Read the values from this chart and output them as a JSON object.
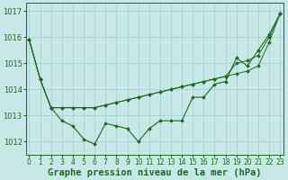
{
  "xlabel": "Graphe pression niveau de la mer (hPa)",
  "background_color": "#c8e8e8",
  "grid_color": "#9fcfcf",
  "line_color": "#1a6b1a",
  "marker_color": "#1a6b1a",
  "ylim": [
    1011.5,
    1017.3
  ],
  "yticks": [
    1012,
    1013,
    1014,
    1015,
    1016,
    1017
  ],
  "xlim": [
    -0.3,
    23.3
  ],
  "xticks": [
    0,
    1,
    2,
    3,
    4,
    5,
    6,
    7,
    8,
    9,
    10,
    11,
    12,
    13,
    14,
    15,
    16,
    17,
    18,
    19,
    20,
    21,
    22,
    23
  ],
  "series1": [
    1015.9,
    1014.4,
    1013.3,
    1012.8,
    1012.6,
    1012.1,
    1011.9,
    1012.7,
    1012.6,
    1012.5,
    1012.0,
    1012.5,
    1012.8,
    1012.8,
    1012.8,
    1013.7,
    1013.7,
    1014.2,
    1014.3,
    1015.2,
    1014.9,
    1015.5,
    1016.1,
    1016.9
  ],
  "series2": [
    1015.9,
    1014.4,
    1013.3,
    1013.3,
    1013.3,
    1013.3,
    1013.3,
    1013.4,
    1013.5,
    1013.6,
    1013.7,
    1013.8,
    1013.9,
    1014.0,
    1014.1,
    1014.2,
    1014.3,
    1014.4,
    1014.5,
    1014.6,
    1014.7,
    1014.9,
    1015.8,
    1016.9
  ],
  "series3": [
    1015.9,
    1014.4,
    1013.3,
    1013.3,
    1013.3,
    1013.3,
    1013.3,
    1013.4,
    1013.5,
    1013.6,
    1013.7,
    1013.8,
    1013.9,
    1014.0,
    1014.1,
    1014.2,
    1014.3,
    1014.4,
    1014.5,
    1015.0,
    1015.1,
    1015.3,
    1016.0,
    1016.9
  ],
  "font_color": "#1a6b1a",
  "xlabel_fontsize": 7.5,
  "tick_fontsize": 6.0
}
